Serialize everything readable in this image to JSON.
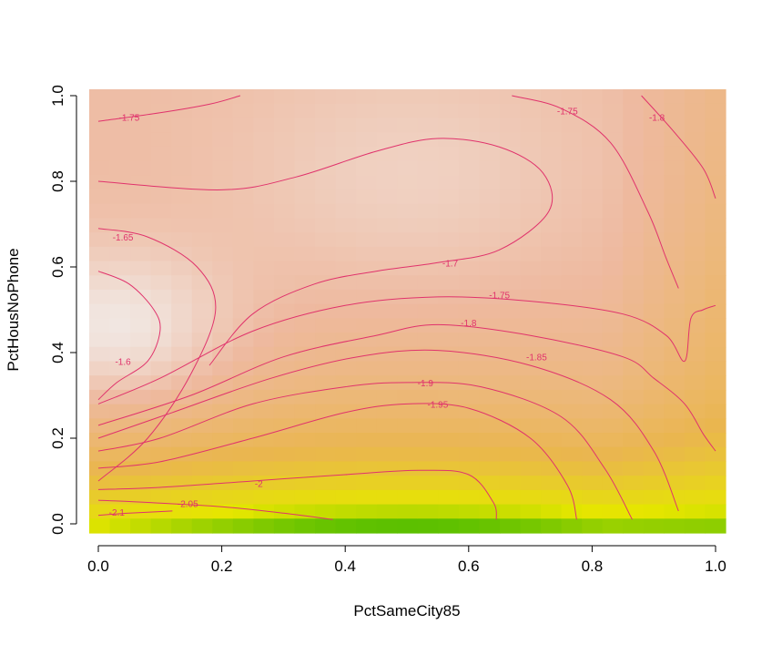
{
  "chart_data": {
    "type": "heatmap",
    "title": "",
    "xlabel": "PctSameCity85",
    "ylabel": "PctHousNoPhone",
    "xlim": [
      0.0,
      1.0
    ],
    "ylim": [
      0.0,
      1.0
    ],
    "x_ticks": [
      "0.0",
      "0.2",
      "0.4",
      "0.6",
      "0.8",
      "1.0"
    ],
    "y_ticks": [
      "0.0",
      "0.2",
      "0.4",
      "0.6",
      "0.8",
      "1.0"
    ],
    "grid": false,
    "legend": "none",
    "colormap": [
      "#00A600",
      "#E6E600",
      "#EAB64E",
      "#EEB99F",
      "#F2F2F2"
    ],
    "value_range": [
      -2.12,
      -1.6
    ],
    "contour_color": "#E0336C",
    "contour_levels": [
      {
        "label": "-2.1",
        "value": -2.1
      },
      {
        "label": "-2.05",
        "value": -2.05
      },
      {
        "label": "-2",
        "value": -2.0
      },
      {
        "label": "-1.95",
        "value": -1.95
      },
      {
        "label": "-1.9",
        "value": -1.9
      },
      {
        "label": "-1.85",
        "value": -1.85
      },
      {
        "label": "-1.8",
        "value": -1.8
      },
      {
        "label": "-1.75",
        "value": -1.75
      },
      {
        "label": "-1.7",
        "value": -1.7
      },
      {
        "label": "-1.65",
        "value": -1.65
      },
      {
        "label": "-1.6",
        "value": -1.6
      }
    ],
    "contours": [
      {
        "level": "-2.1",
        "points": [
          [
            0.0,
            0.02
          ],
          [
            0.05,
            0.025
          ],
          [
            0.12,
            0.03
          ]
        ]
      },
      {
        "level": "-2.05",
        "points": [
          [
            0.0,
            0.055
          ],
          [
            0.08,
            0.05
          ],
          [
            0.2,
            0.04
          ],
          [
            0.3,
            0.025
          ],
          [
            0.38,
            0.01
          ]
        ]
      },
      {
        "level": "-2",
        "points": [
          [
            0.0,
            0.08
          ],
          [
            0.1,
            0.085
          ],
          [
            0.25,
            0.1
          ],
          [
            0.4,
            0.115
          ],
          [
            0.52,
            0.125
          ],
          [
            0.6,
            0.115
          ],
          [
            0.64,
            0.05
          ],
          [
            0.645,
            0.01
          ]
        ]
      },
      {
        "level": "-1.95",
        "points": [
          [
            0.0,
            0.13
          ],
          [
            0.1,
            0.145
          ],
          [
            0.25,
            0.2
          ],
          [
            0.4,
            0.26
          ],
          [
            0.5,
            0.28
          ],
          [
            0.6,
            0.27
          ],
          [
            0.7,
            0.2
          ],
          [
            0.76,
            0.09
          ],
          [
            0.775,
            0.01
          ]
        ]
      },
      {
        "level": "-1.9",
        "points": [
          [
            0.0,
            0.17
          ],
          [
            0.1,
            0.2
          ],
          [
            0.25,
            0.28
          ],
          [
            0.4,
            0.32
          ],
          [
            0.5,
            0.33
          ],
          [
            0.62,
            0.32
          ],
          [
            0.75,
            0.25
          ],
          [
            0.82,
            0.13
          ],
          [
            0.865,
            0.01
          ]
        ]
      },
      {
        "level": "-1.85",
        "points": [
          [
            0.0,
            0.2
          ],
          [
            0.12,
            0.26
          ],
          [
            0.28,
            0.34
          ],
          [
            0.42,
            0.39
          ],
          [
            0.55,
            0.405
          ],
          [
            0.7,
            0.37
          ],
          [
            0.83,
            0.29
          ],
          [
            0.9,
            0.17
          ],
          [
            0.94,
            0.03
          ]
        ]
      },
      {
        "level": "-1.8",
        "points": [
          [
            0.0,
            0.23
          ],
          [
            0.15,
            0.3
          ],
          [
            0.3,
            0.39
          ],
          [
            0.45,
            0.44
          ],
          [
            0.55,
            0.465
          ],
          [
            0.7,
            0.44
          ],
          [
            0.85,
            0.39
          ],
          [
            0.9,
            0.34
          ],
          [
            0.95,
            0.28
          ],
          [
            0.98,
            0.21
          ],
          [
            1.0,
            0.17
          ]
        ]
      },
      {
        "level": "-1.75",
        "points": [
          [
            0.0,
            0.28
          ],
          [
            0.1,
            0.34
          ],
          [
            0.25,
            0.45
          ],
          [
            0.4,
            0.51
          ],
          [
            0.55,
            0.53
          ],
          [
            0.7,
            0.52
          ],
          [
            0.85,
            0.49
          ],
          [
            0.92,
            0.44
          ],
          [
            0.95,
            0.38
          ],
          [
            0.96,
            0.48
          ],
          [
            0.98,
            0.5
          ],
          [
            1.0,
            0.51
          ]
        ]
      },
      {
        "level": "-1.7",
        "points": [
          [
            0.18,
            0.37
          ],
          [
            0.25,
            0.49
          ],
          [
            0.35,
            0.56
          ],
          [
            0.45,
            0.59
          ],
          [
            0.55,
            0.61
          ],
          [
            0.65,
            0.64
          ],
          [
            0.73,
            0.73
          ],
          [
            0.72,
            0.82
          ],
          [
            0.65,
            0.88
          ],
          [
            0.55,
            0.9
          ],
          [
            0.45,
            0.87
          ],
          [
            0.32,
            0.81
          ],
          [
            0.2,
            0.78
          ],
          [
            0.0,
            0.8
          ]
        ]
      },
      {
        "level": "-1.75",
        "points": [
          [
            0.0,
            0.94
          ],
          [
            0.1,
            0.96
          ],
          [
            0.18,
            0.98
          ],
          [
            0.23,
            1.0
          ]
        ]
      },
      {
        "level": "-1.75",
        "points": [
          [
            0.67,
            1.0
          ],
          [
            0.75,
            0.97
          ],
          [
            0.83,
            0.89
          ],
          [
            0.89,
            0.73
          ],
          [
            0.92,
            0.62
          ],
          [
            0.94,
            0.55
          ]
        ]
      },
      {
        "level": "-1.8",
        "points": [
          [
            0.88,
            1.0
          ],
          [
            0.93,
            0.92
          ],
          [
            0.98,
            0.83
          ],
          [
            1.0,
            0.76
          ]
        ]
      },
      {
        "level": "-1.65",
        "points": [
          [
            0.0,
            0.69
          ],
          [
            0.08,
            0.67
          ],
          [
            0.16,
            0.6
          ],
          [
            0.19,
            0.5
          ],
          [
            0.15,
            0.35
          ],
          [
            0.08,
            0.2
          ],
          [
            0.0,
            0.1
          ]
        ]
      },
      {
        "level": "-1.6",
        "points": [
          [
            0.0,
            0.59
          ],
          [
            0.05,
            0.56
          ],
          [
            0.09,
            0.5
          ],
          [
            0.1,
            0.45
          ],
          [
            0.08,
            0.38
          ],
          [
            0.03,
            0.33
          ],
          [
            0.0,
            0.29
          ]
        ]
      }
    ],
    "contour_labels": [
      {
        "text": "-2.1",
        "x": 0.03,
        "y": 0.028
      },
      {
        "text": "-2.05",
        "x": 0.145,
        "y": 0.048
      },
      {
        "text": "-2",
        "x": 0.26,
        "y": 0.095
      },
      {
        "text": "-1.95",
        "x": 0.55,
        "y": 0.28
      },
      {
        "text": "-1.9",
        "x": 0.53,
        "y": 0.33
      },
      {
        "text": "-1.85",
        "x": 0.71,
        "y": 0.39
      },
      {
        "text": "-1.8",
        "x": 0.6,
        "y": 0.47
      },
      {
        "text": "-1.75",
        "x": 0.65,
        "y": 0.535
      },
      {
        "text": "-1.7",
        "x": 0.57,
        "y": 0.61
      },
      {
        "text": "-1.65",
        "x": 0.04,
        "y": 0.67
      },
      {
        "text": "-1.6",
        "x": 0.04,
        "y": 0.38
      },
      {
        "text": "-1.75",
        "x": 0.05,
        "y": 0.95
      },
      {
        "text": "-1.75",
        "x": 0.76,
        "y": 0.965
      },
      {
        "text": "-1.8",
        "x": 0.905,
        "y": 0.95
      }
    ]
  }
}
